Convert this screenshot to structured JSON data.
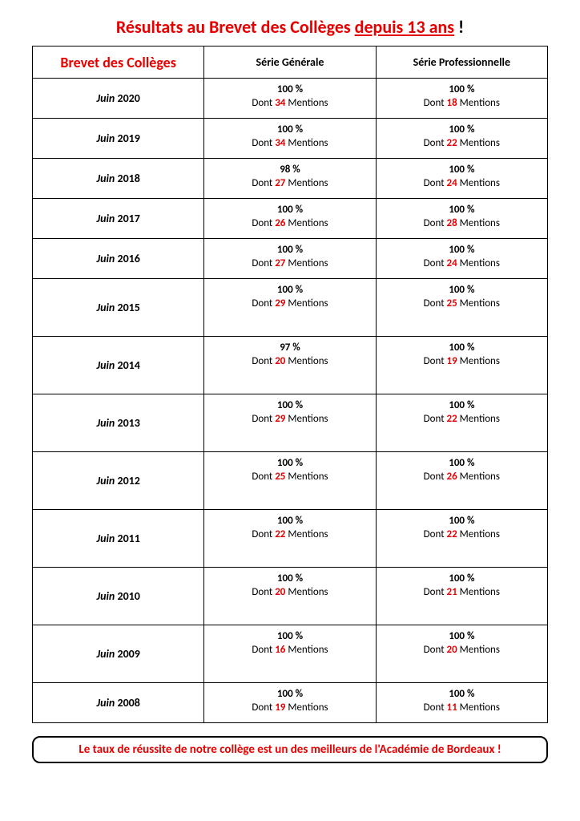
{
  "title_pre": "Résultats au Brevet des Collèges ",
  "title_underline": "depuis 13 ans",
  "title_post": " !",
  "headers": {
    "col1": "Brevet des Collèges",
    "col2": "Série Générale",
    "col3": "Série Professionnelle"
  },
  "month_label": "Juin",
  "dont_prefix": "Dont ",
  "mentions_suffix": " Mentions",
  "rows": [
    {
      "year": "2020",
      "gen_pct": "100 %",
      "gen_m": "34",
      "pro_pct": "100 %",
      "pro_m": "18",
      "tall": false
    },
    {
      "year": "2019",
      "gen_pct": "100 %",
      "gen_m": "34",
      "pro_pct": "100 %",
      "pro_m": "22",
      "tall": false
    },
    {
      "year": "2018",
      "gen_pct": "98 %",
      "gen_m": "27",
      "pro_pct": "100 %",
      "pro_m": "24",
      "tall": false
    },
    {
      "year": "2017",
      "gen_pct": "100 %",
      "gen_m": "26",
      "pro_pct": "100 %",
      "pro_m": "28",
      "tall": false
    },
    {
      "year": "2016",
      "gen_pct": "100 %",
      "gen_m": "27",
      "pro_pct": "100 %",
      "pro_m": "24",
      "tall": false
    },
    {
      "year": "2015",
      "gen_pct": "100 %",
      "gen_m": "29",
      "pro_pct": "100 %",
      "pro_m": "25",
      "tall": true
    },
    {
      "year": "2014",
      "gen_pct": "97 %",
      "gen_m": "20",
      "pro_pct": "100 %",
      "pro_m": "19",
      "tall": true
    },
    {
      "year": "2013",
      "gen_pct": "100 %",
      "gen_m": "29",
      "pro_pct": "100 %",
      "pro_m": "22",
      "tall": true
    },
    {
      "year": "2012",
      "gen_pct": "100 %",
      "gen_m": "25",
      "pro_pct": "100 %",
      "pro_m": "26",
      "tall": true
    },
    {
      "year": "2011",
      "gen_pct": "100 %",
      "gen_m": "22",
      "pro_pct": "100 %",
      "pro_m": "22",
      "tall": true
    },
    {
      "year": "2010",
      "gen_pct": "100 %",
      "gen_m": "20",
      "pro_pct": "100 %",
      "pro_m": "21",
      "tall": true
    },
    {
      "year": "2009",
      "gen_pct": "100 %",
      "gen_m": "16",
      "pro_pct": "100 %",
      "pro_m": "20",
      "tall": true
    },
    {
      "year": "2008",
      "gen_pct": "100 %",
      "gen_m": "19",
      "pro_pct": "100 %",
      "pro_m": "11",
      "tall": false
    }
  ],
  "footer": "Le taux de réussite de notre collège est un des meilleurs de l'Académie de Bordeaux !",
  "colors": {
    "accent": "#e60000",
    "text": "#000000",
    "background": "#ffffff",
    "border": "#000000"
  }
}
